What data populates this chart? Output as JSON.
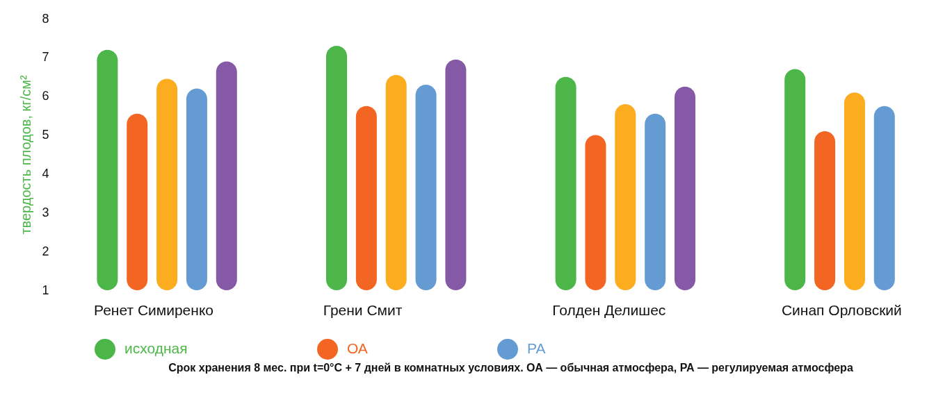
{
  "chart_data": {
    "type": "bar",
    "ylabel": "твердость плодов, кг/см²",
    "categories": [
      "Ренет Симиренко",
      "Грени Смит",
      "Голден Делишес",
      "Синап Орловский"
    ],
    "series": [
      {
        "name": "исходная",
        "color": "#4cb748",
        "values": [
          7.2,
          7.3,
          6.5,
          6.7
        ]
      },
      {
        "name": "ОА",
        "color": "#f26522",
        "values": [
          5.55,
          5.75,
          5.0,
          5.1
        ]
      },
      {
        "color": "#fbac1f",
        "values": [
          6.45,
          6.55,
          5.8,
          6.1
        ]
      },
      {
        "name": "РА",
        "color": "#659bd3",
        "values": [
          6.2,
          6.3,
          5.55,
          5.75
        ]
      },
      {
        "color": "#8559a5",
        "values": [
          6.9,
          6.95,
          6.25,
          null
        ]
      }
    ],
    "ylim": [
      1,
      8
    ],
    "yticks": [
      1,
      2,
      3,
      4,
      5,
      6,
      7,
      8
    ],
    "grid": false,
    "legend": "bottom",
    "annotations": [
      "Срок хранения 8 мес. при t=0°C + 7 дней в комнатных условиях. ОА — обычная атмосфера,     РА — регулируемая атмосфера"
    ]
  }
}
